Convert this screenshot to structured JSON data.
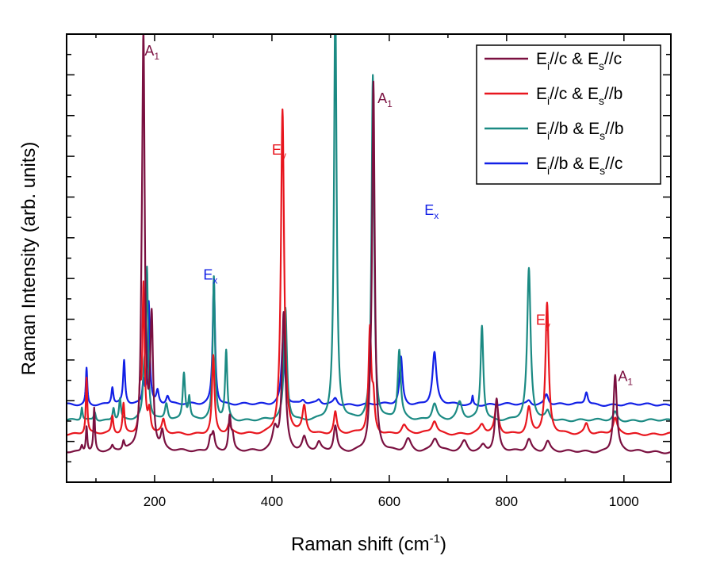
{
  "chart_data": {
    "type": "line",
    "xlabel": "Raman shift (cm",
    "xlabel_sup": "-1",
    "xlabel_end": ")",
    "ylabel": "Raman Intensity (arb. units)",
    "xlim": [
      50,
      1080
    ],
    "ylim": [
      -0.2,
      10.2
    ],
    "x_ticks": [
      200,
      400,
      600,
      800,
      1000
    ],
    "x_tick_labels": [
      "200",
      "400",
      "600",
      "800",
      "1000"
    ],
    "y_tick_labels": "none",
    "grid": false,
    "legend_position": "top-right",
    "series": [
      {
        "name": "Ei//c & Es//c",
        "legend_parts": [
          "E",
          "i",
          "//c & E",
          "s",
          "//c"
        ],
        "color": "#7a1040",
        "baseline": 0.5,
        "peaks": [
          [
            76,
            0.15,
            2
          ],
          [
            84,
            0.6,
            1.5
          ],
          [
            97,
            1.0,
            1.5
          ],
          [
            128,
            0.1,
            2
          ],
          [
            147,
            0.2,
            2
          ],
          [
            178,
            1.3,
            2
          ],
          [
            181,
            9.3,
            2.6
          ],
          [
            195,
            3.0,
            2.8
          ],
          [
            213,
            0.4,
            3
          ],
          [
            295,
            0.3,
            3
          ],
          [
            300,
            0.4,
            3
          ],
          [
            328,
            0.8,
            2.5
          ],
          [
            333,
            0.3,
            2.5
          ],
          [
            405,
            0.5,
            5
          ],
          [
            420,
            3.2,
            3.5
          ],
          [
            455,
            0.3,
            4
          ],
          [
            480,
            0.2,
            4
          ],
          [
            508,
            0.6,
            3.5
          ],
          [
            568,
            0.6,
            3
          ],
          [
            573,
            8.4,
            2.6
          ],
          [
            632,
            0.3,
            6
          ],
          [
            678,
            0.3,
            6
          ],
          [
            728,
            0.25,
            6
          ],
          [
            760,
            0.15,
            5
          ],
          [
            783,
            1.2,
            3.5
          ],
          [
            838,
            0.3,
            5
          ],
          [
            870,
            0.25,
            5
          ],
          [
            985,
            1.8,
            3.5
          ]
        ]
      },
      {
        "name": "Ei//c & Es//b",
        "legend_parts": [
          "E",
          "i",
          "//c & E",
          "s",
          "//b"
        ],
        "color": "#e8161e",
        "baseline": 0.92,
        "peaks": [
          [
            84,
            1.3,
            1.5
          ],
          [
            128,
            0.4,
            2
          ],
          [
            147,
            0.7,
            2
          ],
          [
            175,
            0.9,
            2
          ],
          [
            181,
            3.4,
            2.2
          ],
          [
            191,
            0.5,
            2.5
          ],
          [
            215,
            0.3,
            3
          ],
          [
            300,
            1.8,
            2.5
          ],
          [
            327,
            0.2,
            3
          ],
          [
            418,
            7.5,
            3.2
          ],
          [
            455,
            0.6,
            3.5
          ],
          [
            508,
            0.5,
            3
          ],
          [
            567,
            2.4,
            2.8
          ],
          [
            573,
            0.7,
            2.5
          ],
          [
            625,
            0.2,
            5
          ],
          [
            677,
            0.3,
            5
          ],
          [
            758,
            0.2,
            5
          ],
          [
            783,
            0.7,
            3.5
          ],
          [
            838,
            0.6,
            4
          ],
          [
            869,
            3.0,
            3.2
          ],
          [
            936,
            0.25,
            4
          ],
          [
            985,
            0.35,
            4
          ]
        ]
      },
      {
        "name": "Ei//b & Es//b",
        "legend_parts": [
          "E",
          "i",
          "//b & E",
          "s",
          "//b"
        ],
        "color": "#1b8a83",
        "baseline": 1.23,
        "peaks": [
          [
            76,
            0.3,
            1.5
          ],
          [
            98,
            0.2,
            2
          ],
          [
            130,
            0.3,
            2
          ],
          [
            141,
            0.5,
            2
          ],
          [
            182,
            0.8,
            2.5
          ],
          [
            187,
            3.4,
            2.2
          ],
          [
            220,
            0.4,
            3
          ],
          [
            250,
            1.1,
            2.5
          ],
          [
            259,
            0.5,
            2
          ],
          [
            301,
            3.3,
            2.2
          ],
          [
            322,
            1.6,
            2.2
          ],
          [
            423,
            2.6,
            3
          ],
          [
            508,
            9.8,
            2.6
          ],
          [
            572,
            8.0,
            2.6
          ],
          [
            617,
            1.6,
            3
          ],
          [
            677,
            0.4,
            5
          ],
          [
            720,
            0.4,
            5
          ],
          [
            758,
            2.2,
            2.8
          ],
          [
            838,
            3.5,
            3.5
          ],
          [
            870,
            0.2,
            4
          ],
          [
            985,
            0.2,
            4
          ]
        ]
      },
      {
        "name": "Ei//b & Es//c",
        "legend_parts": [
          "E",
          "i",
          "//b & E",
          "s",
          "//c"
        ],
        "color": "#1220e6",
        "baseline": 1.6,
        "peaks": [
          [
            84,
            0.85,
            1.5
          ],
          [
            128,
            0.4,
            2
          ],
          [
            148,
            1.0,
            2
          ],
          [
            181,
            0.5,
            2
          ],
          [
            190,
            2.4,
            2.2
          ],
          [
            205,
            0.3,
            2.5
          ],
          [
            222,
            0.2,
            3
          ],
          [
            301,
            2.9,
            2.4
          ],
          [
            419,
            1.5,
            3.5
          ],
          [
            453,
            0.1,
            4
          ],
          [
            480,
            0.1,
            4
          ],
          [
            508,
            0.15,
            4
          ],
          [
            620,
            1.1,
            3
          ],
          [
            677,
            1.2,
            4
          ],
          [
            742,
            0.2,
            1.2
          ],
          [
            838,
            0.1,
            4
          ],
          [
            868,
            0.25,
            4
          ],
          [
            936,
            0.3,
            3
          ]
        ]
      }
    ],
    "annotations": [
      {
        "text": "A",
        "sub": "1",
        "x": 183,
        "y": 9.7,
        "color": "#7a1040"
      },
      {
        "text": "A",
        "sub": "1",
        "x": 580,
        "y": 8.6,
        "color": "#7a1040"
      },
      {
        "text": "A",
        "sub": "1",
        "x": 990,
        "y": 2.15,
        "color": "#7a1040"
      },
      {
        "text": "E",
        "sub": "y",
        "x": 400,
        "y": 7.4,
        "color": "#e8161e"
      },
      {
        "text": "E",
        "sub": "y",
        "x": 850,
        "y": 3.45,
        "color": "#e8161e"
      },
      {
        "text": "E",
        "sub": "x",
        "x": 283,
        "y": 4.5,
        "color": "#1220e6"
      },
      {
        "text": "E",
        "sub": "x",
        "x": 660,
        "y": 6.0,
        "color": "#1220e6"
      }
    ]
  }
}
